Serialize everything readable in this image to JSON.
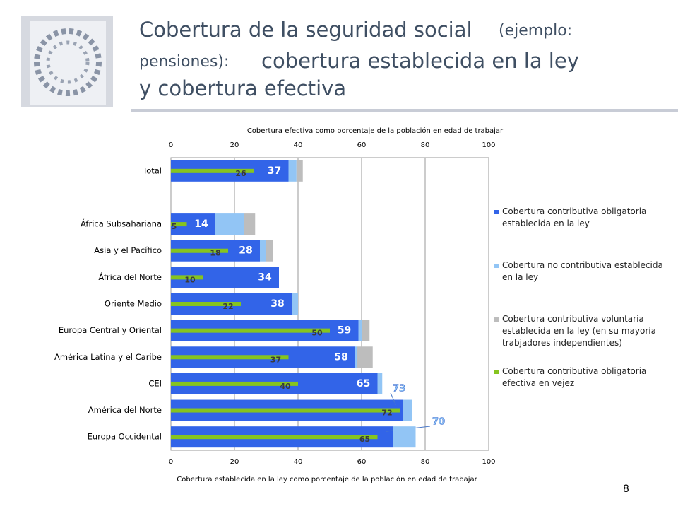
{
  "slide": {
    "title_parts": [
      "Cobertura de la seguridad social",
      "(ejemplo:",
      "pensiones):",
      "cobertura establecida en la ley",
      "y cobertura efectiva"
    ],
    "page_number": 8
  },
  "chart_data": {
    "type": "bar",
    "orientation": "horizontal",
    "x_title_top": "Cobertura efectiva como porcentaje de la población en edad de trabajar",
    "x_title_bottom": "Cobertura establecida en la ley como porcentaje de la población en edad de trabajar",
    "categories": [
      "Total",
      null,
      "África Subsahariana",
      "Asia y el Pacífico",
      "África del Norte",
      "Oriente Medio",
      "Europa Central y Oriental",
      "América Latina y el Caribe",
      "CEI",
      "América del Norte",
      "Europa Occidental"
    ],
    "series": [
      {
        "name": "Cobertura contributiva obligatoria establecida en la ley",
        "color": "#3264e8",
        "values": [
          37,
          null,
          14,
          28,
          34,
          38,
          59,
          58,
          65,
          73,
          70
        ]
      },
      {
        "name": "Cobertura no contributiva establecida en la ley",
        "color": "#92c5f5",
        "values": [
          2.5,
          null,
          9,
          2,
          0,
          2,
          1,
          0.5,
          1.5,
          3,
          7
        ]
      },
      {
        "name": "Cobertura contributiva voluntaria establecida en la ley (en su mayoría trabjadores independientes)",
        "color": "#bdbdbd",
        "values": [
          2,
          null,
          3.5,
          2,
          0,
          0,
          2.5,
          5,
          0,
          0,
          0
        ]
      },
      {
        "name": "Cobertura contributiva obligatoria efectiva en vejez",
        "color": "#86c41f",
        "overlay": true,
        "values": [
          26,
          null,
          5,
          18,
          10,
          22,
          50,
          37,
          40,
          72,
          65
        ]
      }
    ],
    "xlim": [
      0,
      100
    ],
    "xticks": [
      0,
      20,
      40,
      60,
      80,
      100
    ],
    "grid": true,
    "legend": "right"
  }
}
